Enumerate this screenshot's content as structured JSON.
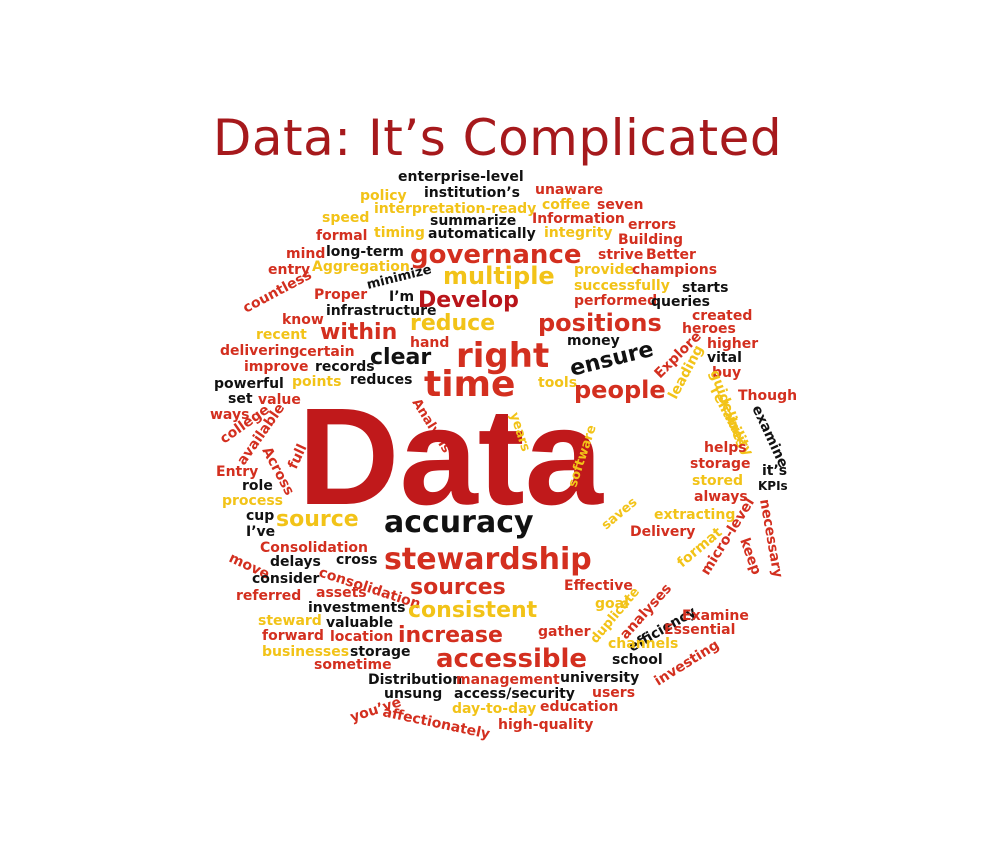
{
  "title": "Data: It’s Complicated",
  "colors": {
    "title": "#a6191c",
    "red": "#d32f1f",
    "darkred": "#b9151a",
    "yellow": "#f2c318",
    "black": "#111111"
  },
  "words": {
    "w_enterprise_level": "enterprise-level",
    "w_institutions": "institution’s",
    "w_policy": "policy",
    "w_unaware": "unaware",
    "w_speed": "speed",
    "w_interpretation_ready": "interpretation-ready",
    "w_coffee": "coffee",
    "w_seven": "seven",
    "w_summarize": "summarize",
    "w_information": "Information",
    "w_formal": "formal",
    "w_timing": "timing",
    "w_automatically": "automatically",
    "w_integrity": "integrity",
    "w_errors": "errors",
    "w_building": "Building",
    "w_mind": "mind",
    "w_long_term": "long-term",
    "w_governance": "governance",
    "w_strive": "strive",
    "w_better": "Better",
    "w_entry": "entry",
    "w_aggregation": "Aggregation",
    "w_multiple": "multiple",
    "w_provide": "provide",
    "w_champions": "champions",
    "w_minimize": "minimize",
    "w_countless": "countless",
    "w_successfully": "successfully",
    "w_starts": "starts",
    "w_proper": "Proper",
    "w_im": "I’m",
    "w_develop": "Develop",
    "w_performed": "performed",
    "w_queries": "queries",
    "w_infrastructure": "infrastructure",
    "w_know": "know",
    "w_created": "created",
    "w_recent": "recent",
    "w_reduce": "reduce",
    "w_positions": "positions",
    "w_heroes": "heroes",
    "w_within": "within",
    "w_hand": "hand",
    "w_money": "money",
    "w_higher": "higher",
    "w_delivering": "delivering",
    "w_certain": "certain",
    "w_clear": "clear",
    "w_right": "right",
    "w_ensure": "ensure",
    "w_explore": "Explore",
    "w_vital": "vital",
    "w_improve": "improve",
    "w_records": "records",
    "w_buy": "buy",
    "w_powerful": "powerful",
    "w_points": "points",
    "w_reduces": "reduces",
    "w_time": "time",
    "w_tools": "tools",
    "w_people": "people",
    "w_leading": "leading",
    "w_guidelines": "guidelines",
    "w_though": "Though",
    "w_set": "set",
    "w_value": "value",
    "w_analysis": "Analysis",
    "w_reliability": "reliability",
    "w_examine_lower": "examine",
    "w_ways": "ways",
    "w_college": "college",
    "w_available": "available",
    "w_data": "Data",
    "w_years": "years",
    "w_software": "software",
    "w_helps": "helps",
    "w_across": "Across",
    "w_full": "full",
    "w_entry_cap": "Entry",
    "w_storage_r": "storage",
    "w_its": "it’s",
    "w_role": "role",
    "w_stored": "stored",
    "w_kpis": "KPIs",
    "w_process": "process",
    "w_always": "always",
    "w_cup": "cup",
    "w_source": "source",
    "w_accuracy": "accuracy",
    "w_saves": "saves",
    "w_extracting": "extracting",
    "w_ive": "I’ve",
    "w_delivery": "Delivery",
    "w_consolidation_cap": "Consolidation",
    "w_micro_level": "micro-level",
    "w_keep": "keep",
    "w_move": "move",
    "w_delays": "delays",
    "w_cross": "cross",
    "w_stewardship": "stewardship",
    "w_format": "format",
    "w_necessary": "necessary",
    "w_consider": "consider",
    "w_consolidation": "consolidation",
    "w_sources": "sources",
    "w_effective": "Effective",
    "w_referred": "referred",
    "w_assets": "assets",
    "w_goal": "goal",
    "w_analyses": "analyses",
    "w_investments": "investments",
    "w_consistent": "consistent",
    "w_steward": "steward",
    "w_valuable": "valuable",
    "w_duplicate": "duplicate",
    "w_efficiency": "efficiency",
    "w_examine_cap": "Examine",
    "w_forward": "forward",
    "w_location": "location",
    "w_increase": "increase",
    "w_gather": "gather",
    "w_channels": "channels",
    "w_essential": "Essential",
    "w_businesses": "businesses",
    "w_storage_l": "storage",
    "w_accessible": "accessible",
    "w_school": "school",
    "w_investing": "investing",
    "w_sometime": "sometime",
    "w_distribution": "Distribution",
    "w_management": "management",
    "w_university": "university",
    "w_unsung": "unsung",
    "w_access_security": "access/security",
    "w_users": "users",
    "w_youve": "you’ve",
    "w_day_to_day": "day-to-day",
    "w_education": "education",
    "w_affectionately": "affectionately",
    "w_high_quality": "high-quality"
  }
}
